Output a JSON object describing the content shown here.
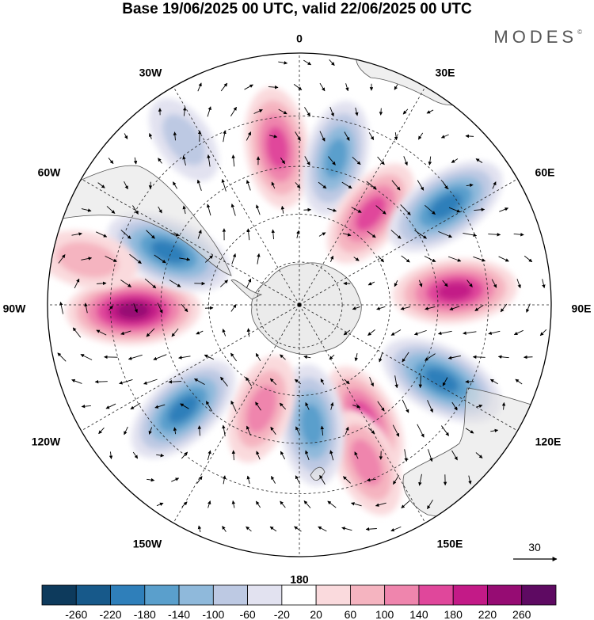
{
  "title": "Base 19/06/2025 00 UTC, valid 22/06/2025 00 UTC",
  "brand": "MODES",
  "brand_mark": "©",
  "meridian_labels": [
    {
      "text": "0",
      "lon": 0
    },
    {
      "text": "30E",
      "lon": 30
    },
    {
      "text": "60E",
      "lon": 60
    },
    {
      "text": "90E",
      "lon": 90
    },
    {
      "text": "120E",
      "lon": 120
    },
    {
      "text": "150E",
      "lon": 150
    },
    {
      "text": "180",
      "lon": 180
    },
    {
      "text": "150W",
      "lon": -150
    },
    {
      "text": "120W",
      "lon": -120
    },
    {
      "text": "90W",
      "lon": -90
    },
    {
      "text": "60W",
      "lon": -60
    },
    {
      "text": "30W",
      "lon": -30
    }
  ],
  "vector_reference": {
    "value": "30"
  },
  "colorbar": {
    "colors": [
      "#0d3a5c",
      "#17598a",
      "#2f7fba",
      "#5a9fcc",
      "#8fb9db",
      "#bdc9e3",
      "#e2e2f0",
      "#ffffff",
      "#fadadd",
      "#f5b4c0",
      "#ef85ad",
      "#e0479b",
      "#c31a87",
      "#960c73",
      "#5e0a62"
    ],
    "labels": [
      "-260",
      "-220",
      "-180",
      "-140",
      "-100",
      "-60",
      "-20",
      "20",
      "60",
      "100",
      "140",
      "180",
      "220",
      "260"
    ]
  },
  "anomalies": [
    {
      "lon": -8,
      "dist": 0.63,
      "value": 170
    },
    {
      "lon": 14,
      "dist": 0.6,
      "value": -150
    },
    {
      "lon": 38,
      "dist": 0.46,
      "value": 150
    },
    {
      "lon": 56,
      "dist": 0.7,
      "value": -200
    },
    {
      "lon": 85,
      "dist": 0.62,
      "value": 180
    },
    {
      "lon": 118,
      "dist": 0.64,
      "value": -200
    },
    {
      "lon": 150,
      "dist": 0.52,
      "value": 140
    },
    {
      "lon": 157,
      "dist": 0.68,
      "value": 130
    },
    {
      "lon": 174,
      "dist": 0.48,
      "value": -170
    },
    {
      "lon": -160,
      "dist": 0.44,
      "value": 130
    },
    {
      "lon": -132,
      "dist": 0.62,
      "value": -190
    },
    {
      "lon": -92,
      "dist": 0.66,
      "value": 220
    },
    {
      "lon": -68,
      "dist": 0.56,
      "value": -200
    },
    {
      "lon": -78,
      "dist": 0.86,
      "value": 90
    },
    {
      "lon": -35,
      "dist": 0.8,
      "value": -60
    }
  ]
}
